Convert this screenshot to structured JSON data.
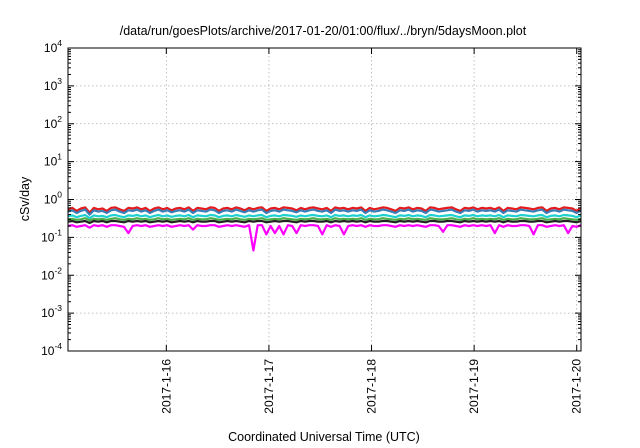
{
  "chart_data": {
    "type": "line",
    "title": "/data/run/goesPlots/archive/2017-01-20/01:00/flux/../bryn/5daysMoon.plot",
    "xlabel": "Coordinated Universal Time (UTC)",
    "ylabel": "cSv/day",
    "y_scale": "log",
    "ylim": [
      0.0001,
      10000
    ],
    "y_ticks": [
      {
        "base": "10",
        "exp": "-4",
        "value": 0.0001
      },
      {
        "base": "10",
        "exp": "-3",
        "value": 0.001
      },
      {
        "base": "10",
        "exp": "-2",
        "value": 0.01
      },
      {
        "base": "10",
        "exp": "-1",
        "value": 0.1
      },
      {
        "base": "10",
        "exp": "0",
        "value": 1
      },
      {
        "base": "10",
        "exp": "1",
        "value": 10
      },
      {
        "base": "10",
        "exp": "2",
        "value": 100
      },
      {
        "base": "10",
        "exp": "3",
        "value": 1000
      },
      {
        "base": "10",
        "exp": "4",
        "value": 10000
      }
    ],
    "xlim": [
      "2017-01-15T01:00",
      "2017-01-20T01:00"
    ],
    "x_ticks": [
      {
        "label": "2017-1-16",
        "value": "2017-01-16T00:00"
      },
      {
        "label": "2017-1-17",
        "value": "2017-01-17T00:00"
      },
      {
        "label": "2017-1-18",
        "value": "2017-01-18T00:00"
      },
      {
        "label": "2017-1-19",
        "value": "2017-01-19T00:00"
      },
      {
        "label": "2017-1-20",
        "value": "2017-01-20T00:00"
      }
    ],
    "grid": true,
    "series": [
      {
        "color": "#e41a1c",
        "values": [
          0.55,
          0.6,
          0.5,
          0.58,
          0.62,
          0.45,
          0.6,
          0.55,
          0.58,
          0.5,
          0.6,
          0.62,
          0.55,
          0.5,
          0.6,
          0.58,
          0.62,
          0.55,
          0.6,
          0.5,
          0.58,
          0.62,
          0.55,
          0.6,
          0.52,
          0.58,
          0.6,
          0.55,
          0.62,
          0.5,
          0.6,
          0.58,
          0.55,
          0.62,
          0.6,
          0.5,
          0.58,
          0.6,
          0.55,
          0.62,
          0.58,
          0.52,
          0.6,
          0.55,
          0.6,
          0.62,
          0.5,
          0.58,
          0.6,
          0.55,
          0.62,
          0.6,
          0.58,
          0.52,
          0.6,
          0.55,
          0.6,
          0.62,
          0.58,
          0.55,
          0.6,
          0.5,
          0.62,
          0.58,
          0.6,
          0.55,
          0.6,
          0.58,
          0.62,
          0.5,
          0.6,
          0.55,
          0.58,
          0.62,
          0.6,
          0.55,
          0.5,
          0.6,
          0.58,
          0.62,
          0.55,
          0.6,
          0.58,
          0.5,
          0.62,
          0.6,
          0.55,
          0.58,
          0.6,
          0.62,
          0.55,
          0.5,
          0.6,
          0.58,
          0.62,
          0.55,
          0.6,
          0.58,
          0.6,
          0.55,
          0.62,
          0.5,
          0.6,
          0.58,
          0.55,
          0.62,
          0.6,
          0.58,
          0.55,
          0.6,
          0.62,
          0.5,
          0.58,
          0.6,
          0.55,
          0.62,
          0.6,
          0.58,
          0.5,
          0.6
        ]
      },
      {
        "color": "#377eb8",
        "values": [
          0.48,
          0.52,
          0.44,
          0.5,
          0.54,
          0.4,
          0.52,
          0.48,
          0.5,
          0.44,
          0.52,
          0.54,
          0.48,
          0.44,
          0.52,
          0.5,
          0.54,
          0.48,
          0.52,
          0.44,
          0.5,
          0.54,
          0.48,
          0.52,
          0.46,
          0.5,
          0.52,
          0.48,
          0.54,
          0.44,
          0.52,
          0.5,
          0.48,
          0.54,
          0.52,
          0.44,
          0.5,
          0.52,
          0.48,
          0.54,
          0.5,
          0.46,
          0.52,
          0.48,
          0.52,
          0.54,
          0.44,
          0.5,
          0.52,
          0.48,
          0.54,
          0.52,
          0.5,
          0.46,
          0.52,
          0.48,
          0.52,
          0.54,
          0.5,
          0.48,
          0.52,
          0.44,
          0.54,
          0.5,
          0.52,
          0.48,
          0.52,
          0.5,
          0.54,
          0.44,
          0.52,
          0.48,
          0.5,
          0.54,
          0.52,
          0.48,
          0.44,
          0.52,
          0.5,
          0.54,
          0.48,
          0.52,
          0.5,
          0.44,
          0.54,
          0.52,
          0.48,
          0.5,
          0.52,
          0.54,
          0.48,
          0.44,
          0.52,
          0.5,
          0.54,
          0.48,
          0.52,
          0.5,
          0.52,
          0.48,
          0.54,
          0.44,
          0.52,
          0.5,
          0.48,
          0.54,
          0.52,
          0.5,
          0.48,
          0.52,
          0.54,
          0.44,
          0.5,
          0.52,
          0.48,
          0.54,
          0.52,
          0.5,
          0.44,
          0.52
        ]
      },
      {
        "color": "#1fd0d0",
        "values": [
          0.36,
          0.38,
          0.34,
          0.37,
          0.39,
          0.32,
          0.38,
          0.36,
          0.37,
          0.34,
          0.38,
          0.39,
          0.36,
          0.34,
          0.38,
          0.37,
          0.39,
          0.36,
          0.38,
          0.34,
          0.37,
          0.39,
          0.36,
          0.38,
          0.35,
          0.37,
          0.38,
          0.36,
          0.39,
          0.34,
          0.38,
          0.37,
          0.36,
          0.39,
          0.38,
          0.34,
          0.37,
          0.38,
          0.36,
          0.39,
          0.37,
          0.35,
          0.38,
          0.36,
          0.38,
          0.39,
          0.34,
          0.37,
          0.38,
          0.36,
          0.39,
          0.38,
          0.37,
          0.35,
          0.38,
          0.36,
          0.38,
          0.39,
          0.37,
          0.36,
          0.38,
          0.34,
          0.39,
          0.37,
          0.38,
          0.36,
          0.38,
          0.37,
          0.39,
          0.34,
          0.38,
          0.36,
          0.37,
          0.39,
          0.38,
          0.36,
          0.34,
          0.38,
          0.37,
          0.39,
          0.36,
          0.38,
          0.37,
          0.34,
          0.39,
          0.38,
          0.36,
          0.37,
          0.38,
          0.39,
          0.36,
          0.34,
          0.38,
          0.37,
          0.39,
          0.36,
          0.38,
          0.37,
          0.38,
          0.36,
          0.39,
          0.34,
          0.38,
          0.37,
          0.36,
          0.39,
          0.38,
          0.37,
          0.36,
          0.38,
          0.39,
          0.34,
          0.37,
          0.38,
          0.36,
          0.39,
          0.38,
          0.37,
          0.34,
          0.38
        ]
      },
      {
        "color": "#4daf4a",
        "values": [
          0.3,
          0.31,
          0.29,
          0.3,
          0.32,
          0.28,
          0.31,
          0.3,
          0.31,
          0.29,
          0.31,
          0.32,
          0.3,
          0.29,
          0.31,
          0.3,
          0.32,
          0.3,
          0.31,
          0.29,
          0.3,
          0.32,
          0.3,
          0.31,
          0.29,
          0.3,
          0.31,
          0.3,
          0.32,
          0.29,
          0.31,
          0.3,
          0.3,
          0.32,
          0.31,
          0.29,
          0.3,
          0.31,
          0.3,
          0.32,
          0.3,
          0.29,
          0.31,
          0.3,
          0.31,
          0.32,
          0.29,
          0.3,
          0.31,
          0.3,
          0.32,
          0.31,
          0.3,
          0.29,
          0.31,
          0.3,
          0.31,
          0.32,
          0.3,
          0.3,
          0.31,
          0.29,
          0.32,
          0.3,
          0.31,
          0.3,
          0.31,
          0.3,
          0.32,
          0.29,
          0.31,
          0.3,
          0.3,
          0.32,
          0.31,
          0.3,
          0.29,
          0.31,
          0.3,
          0.32,
          0.3,
          0.31,
          0.3,
          0.29,
          0.32,
          0.31,
          0.3,
          0.3,
          0.31,
          0.32,
          0.3,
          0.29,
          0.31,
          0.3,
          0.32,
          0.3,
          0.31,
          0.3,
          0.31,
          0.3,
          0.32,
          0.29,
          0.31,
          0.3,
          0.3,
          0.32,
          0.31,
          0.3,
          0.3,
          0.31,
          0.32,
          0.29,
          0.3,
          0.31,
          0.3,
          0.32,
          0.31,
          0.3,
          0.29,
          0.31
        ]
      },
      {
        "color": "#222222",
        "values": [
          0.26,
          0.27,
          0.25,
          0.26,
          0.27,
          0.24,
          0.27,
          0.26,
          0.27,
          0.25,
          0.27,
          0.27,
          0.26,
          0.25,
          0.27,
          0.26,
          0.27,
          0.26,
          0.27,
          0.25,
          0.26,
          0.27,
          0.26,
          0.27,
          0.25,
          0.26,
          0.27,
          0.26,
          0.27,
          0.25,
          0.27,
          0.26,
          0.26,
          0.27,
          0.27,
          0.25,
          0.26,
          0.27,
          0.26,
          0.27,
          0.26,
          0.25,
          0.27,
          0.26,
          0.27,
          0.27,
          0.25,
          0.26,
          0.27,
          0.26,
          0.27,
          0.27,
          0.26,
          0.25,
          0.27,
          0.26,
          0.27,
          0.27,
          0.26,
          0.26,
          0.27,
          0.25,
          0.27,
          0.26,
          0.27,
          0.26,
          0.27,
          0.26,
          0.27,
          0.25,
          0.27,
          0.26,
          0.26,
          0.27,
          0.27,
          0.26,
          0.25,
          0.27,
          0.26,
          0.27,
          0.26,
          0.27,
          0.26,
          0.25,
          0.27,
          0.27,
          0.26,
          0.26,
          0.27,
          0.27,
          0.26,
          0.25,
          0.27,
          0.26,
          0.27,
          0.26,
          0.27,
          0.26,
          0.27,
          0.26,
          0.27,
          0.25,
          0.27,
          0.26,
          0.26,
          0.27,
          0.27,
          0.26,
          0.26,
          0.27,
          0.27,
          0.25,
          0.26,
          0.27,
          0.26,
          0.27,
          0.27,
          0.26,
          0.25,
          0.27
        ]
      },
      {
        "color": "#ff00ff",
        "values": [
          0.2,
          0.21,
          0.19,
          0.2,
          0.21,
          0.18,
          0.21,
          0.2,
          0.21,
          0.19,
          0.21,
          0.21,
          0.2,
          0.19,
          0.13,
          0.2,
          0.21,
          0.2,
          0.21,
          0.19,
          0.2,
          0.21,
          0.2,
          0.21,
          0.19,
          0.2,
          0.21,
          0.2,
          0.21,
          0.16,
          0.21,
          0.2,
          0.2,
          0.21,
          0.21,
          0.19,
          0.2,
          0.21,
          0.2,
          0.21,
          0.2,
          0.19,
          0.21,
          0.045,
          0.21,
          0.21,
          0.12,
          0.2,
          0.13,
          0.2,
          0.12,
          0.21,
          0.2,
          0.13,
          0.21,
          0.2,
          0.21,
          0.21,
          0.2,
          0.12,
          0.21,
          0.19,
          0.21,
          0.2,
          0.12,
          0.2,
          0.21,
          0.2,
          0.21,
          0.19,
          0.21,
          0.2,
          0.2,
          0.21,
          0.21,
          0.2,
          0.19,
          0.21,
          0.2,
          0.21,
          0.2,
          0.21,
          0.2,
          0.19,
          0.21,
          0.21,
          0.2,
          0.14,
          0.21,
          0.21,
          0.2,
          0.19,
          0.21,
          0.2,
          0.21,
          0.2,
          0.21,
          0.2,
          0.21,
          0.13,
          0.21,
          0.19,
          0.21,
          0.2,
          0.2,
          0.21,
          0.21,
          0.2,
          0.12,
          0.21,
          0.21,
          0.19,
          0.2,
          0.21,
          0.2,
          0.21,
          0.13,
          0.2,
          0.19,
          0.21
        ]
      }
    ]
  }
}
